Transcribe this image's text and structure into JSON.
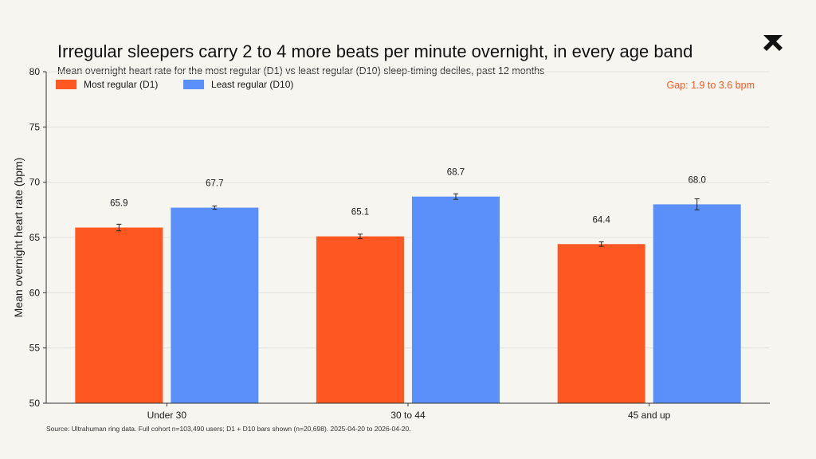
{
  "title": "Irregular sleepers carry 2 to 4 more beats per minute overnight, in every age band",
  "subtitle": "Mean overnight heart rate for the most regular (D1) vs least regular (D10) sleep-timing deciles, past 12 months",
  "source": "Source: Ultrahuman ring data. Full cohort n=103,490 users; D1 + D10 bars shown (n=20,698). 2025-04-20 to 2026-04-20.",
  "annotation": "Gap: 1.9 to 3.6 bpm",
  "colors": {
    "d1": "#ff5722",
    "d10": "#5b8ff9",
    "annotation": "#ff5722",
    "logo": "#111111"
  },
  "chart_data": {
    "type": "bar",
    "categories": [
      "Under 30",
      "30 to 44",
      "45 and up"
    ],
    "series": [
      {
        "name": "Most regular (D1)",
        "values": [
          65.9,
          65.1,
          64.4
        ],
        "error": [
          0.3,
          0.2,
          0.2
        ],
        "labels": [
          "65.9",
          "65.1",
          "64.4"
        ]
      },
      {
        "name": "Least regular (D10)",
        "values": [
          67.7,
          68.7,
          68.0
        ],
        "error": [
          0.15,
          0.25,
          0.5
        ],
        "labels": [
          "67.7",
          "68.7",
          "68.0"
        ]
      }
    ],
    "ylabel": "Mean overnight heart rate (bpm)",
    "ylim": [
      50,
      80
    ],
    "yticks": [
      50,
      55,
      60,
      65,
      70,
      75,
      80
    ],
    "grid": true,
    "legend": "top-left"
  }
}
